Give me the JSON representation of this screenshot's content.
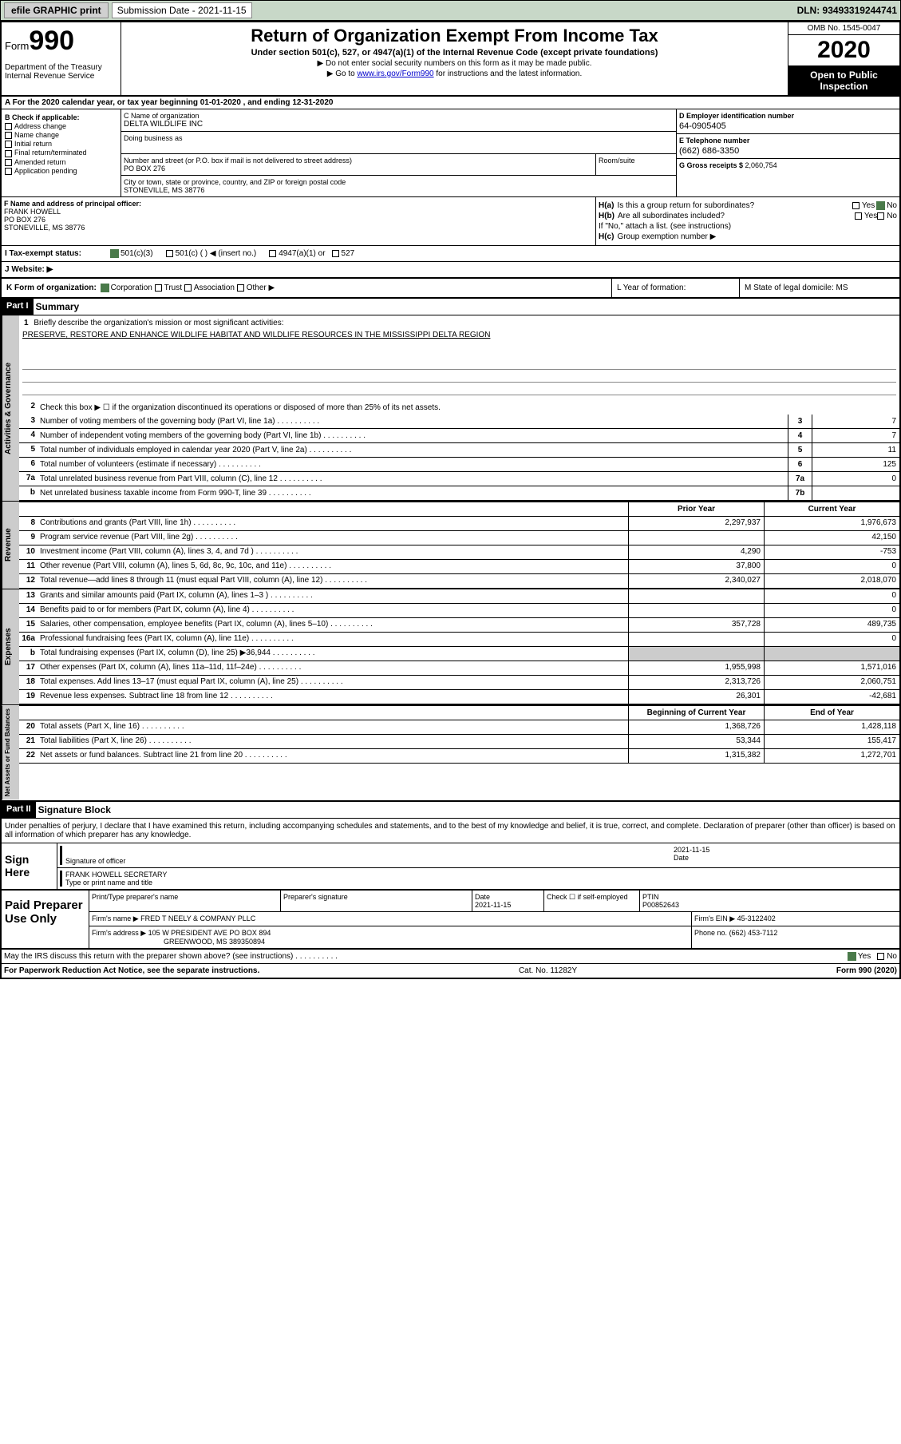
{
  "topbar": {
    "efile": "efile GRAPHIC print",
    "sub_label": "Submission Date - 2021-11-15",
    "dln": "DLN: 93493319244741"
  },
  "header": {
    "form_prefix": "Form",
    "form_num": "990",
    "dept": "Department of the Treasury Internal Revenue Service",
    "title": "Return of Organization Exempt From Income Tax",
    "subtitle": "Under section 501(c), 527, or 4947(a)(1) of the Internal Revenue Code (except private foundations)",
    "note1": "▶ Do not enter social security numbers on this form as it may be made public.",
    "note2_prefix": "▶ Go to ",
    "note2_link": "www.irs.gov/Form990",
    "note2_suffix": " for instructions and the latest information.",
    "omb": "OMB No. 1545-0047",
    "year": "2020",
    "otp": "Open to Public Inspection"
  },
  "line_a": "A For the 2020 calendar year, or tax year beginning 01-01-2020  , and ending 12-31-2020",
  "box_b": {
    "header": "B Check if applicable:",
    "items": [
      "Address change",
      "Name change",
      "Initial return",
      "Final return/terminated",
      "Amended return",
      "Application pending"
    ]
  },
  "box_c": {
    "name_label": "C Name of organization",
    "name": "DELTA WILDLIFE INC",
    "dba_label": "Doing business as",
    "addr_label": "Number and street (or P.O. box if mail is not delivered to street address)",
    "addr": "PO BOX 276",
    "room_label": "Room/suite",
    "city_label": "City or town, state or province, country, and ZIP or foreign postal code",
    "city": "STONEVILLE, MS  38776"
  },
  "box_d": {
    "ein_label": "D Employer identification number",
    "ein": "64-0905405",
    "phone_label": "E Telephone number",
    "phone": "(662) 686-3350",
    "gross_label": "G Gross receipts $ ",
    "gross": "2,060,754"
  },
  "box_f": {
    "label": "F  Name and address of principal officer:",
    "name": "FRANK HOWELL",
    "addr1": "PO BOX 276",
    "addr2": "STONEVILLE, MS  38776"
  },
  "box_h": {
    "ha_label": "H(a)",
    "ha_text": "Is this a group return for subordinates?",
    "hb_label": "H(b)",
    "hb_text": "Are all subordinates included?",
    "hb_note": "If \"No,\" attach a list. (see instructions)",
    "hc_label": "H(c)",
    "hc_text": "Group exemption number ▶",
    "yes": "Yes",
    "no": "No"
  },
  "tax_status": {
    "i_label": "I  Tax-exempt status:",
    "opt1": "501(c)(3)",
    "opt2": "501(c) (  ) ◀ (insert no.)",
    "opt3": "4947(a)(1) or",
    "opt4": "527"
  },
  "website": {
    "j_label": "J  Website: ▶"
  },
  "klm": {
    "k_label": "K Form of organization:",
    "k_corp": "Corporation",
    "k_trust": "Trust",
    "k_assoc": "Association",
    "k_other": "Other ▶",
    "l_label": "L Year of formation:",
    "m_label": "M State of legal domicile: MS"
  },
  "part1": {
    "header": "Part I",
    "title": "Summary",
    "line1_label": "Briefly describe the organization's mission or most significant activities:",
    "line1_text": "PRESERVE, RESTORE AND ENHANCE WILDLIFE HABITAT AND WILDLIFE RESOURCES IN THE MISSISSIPPI DELTA REGION",
    "line2": "Check this box ▶ ☐  if the organization discontinued its operations or disposed of more than 25% of its net assets.",
    "lines": [
      {
        "n": "3",
        "t": "Number of voting members of the governing body (Part VI, line 1a)",
        "box": "3",
        "v": "7"
      },
      {
        "n": "4",
        "t": "Number of independent voting members of the governing body (Part VI, line 1b)",
        "box": "4",
        "v": "7"
      },
      {
        "n": "5",
        "t": "Total number of individuals employed in calendar year 2020 (Part V, line 2a)",
        "box": "5",
        "v": "11"
      },
      {
        "n": "6",
        "t": "Total number of volunteers (estimate if necessary)",
        "box": "6",
        "v": "125"
      },
      {
        "n": "7a",
        "t": "Total unrelated business revenue from Part VIII, column (C), line 12",
        "box": "7a",
        "v": "0"
      },
      {
        "n": "b",
        "t": "Net unrelated business taxable income from Form 990-T, line 39",
        "box": "7b",
        "v": ""
      }
    ]
  },
  "revenue": {
    "prior_header": "Prior Year",
    "curr_header": "Current Year",
    "lines": [
      {
        "n": "8",
        "t": "Contributions and grants (Part VIII, line 1h)",
        "p": "2,297,937",
        "c": "1,976,673"
      },
      {
        "n": "9",
        "t": "Program service revenue (Part VIII, line 2g)",
        "p": "",
        "c": "42,150"
      },
      {
        "n": "10",
        "t": "Investment income (Part VIII, column (A), lines 3, 4, and 7d )",
        "p": "4,290",
        "c": "-753"
      },
      {
        "n": "11",
        "t": "Other revenue (Part VIII, column (A), lines 5, 6d, 8c, 9c, 10c, and 11e)",
        "p": "37,800",
        "c": "0"
      },
      {
        "n": "12",
        "t": "Total revenue—add lines 8 through 11 (must equal Part VIII, column (A), line 12)",
        "p": "2,340,027",
        "c": "2,018,070"
      }
    ]
  },
  "expenses": {
    "lines": [
      {
        "n": "13",
        "t": "Grants and similar amounts paid (Part IX, column (A), lines 1–3 )",
        "p": "",
        "c": "0"
      },
      {
        "n": "14",
        "t": "Benefits paid to or for members (Part IX, column (A), line 4)",
        "p": "",
        "c": "0"
      },
      {
        "n": "15",
        "t": "Salaries, other compensation, employee benefits (Part IX, column (A), lines 5–10)",
        "p": "357,728",
        "c": "489,735"
      },
      {
        "n": "16a",
        "t": "Professional fundraising fees (Part IX, column (A), line 11e)",
        "p": "",
        "c": "0"
      },
      {
        "n": "b",
        "t": "Total fundraising expenses (Part IX, column (D), line 25) ▶36,944",
        "p": "",
        "c": "",
        "shade": true
      },
      {
        "n": "17",
        "t": "Other expenses (Part IX, column (A), lines 11a–11d, 11f–24e)",
        "p": "1,955,998",
        "c": "1,571,016"
      },
      {
        "n": "18",
        "t": "Total expenses. Add lines 13–17 (must equal Part IX, column (A), line 25)",
        "p": "2,313,726",
        "c": "2,060,751"
      },
      {
        "n": "19",
        "t": "Revenue less expenses. Subtract line 18 from line 12",
        "p": "26,301",
        "c": "-42,681"
      }
    ]
  },
  "netassets": {
    "begin_header": "Beginning of Current Year",
    "end_header": "End of Year",
    "lines": [
      {
        "n": "20",
        "t": "Total assets (Part X, line 16)",
        "p": "1,368,726",
        "c": "1,428,118"
      },
      {
        "n": "21",
        "t": "Total liabilities (Part X, line 26)",
        "p": "53,344",
        "c": "155,417"
      },
      {
        "n": "22",
        "t": "Net assets or fund balances. Subtract line 21 from line 20",
        "p": "1,315,382",
        "c": "1,272,701"
      }
    ]
  },
  "part2": {
    "header": "Part II",
    "title": "Signature Block",
    "declaration": "Under penalties of perjury, I declare that I have examined this return, including accompanying schedules and statements, and to the best of my knowledge and belief, it is true, correct, and complete. Declaration of preparer (other than officer) is based on all information of which preparer has any knowledge."
  },
  "sign": {
    "label": "Sign Here",
    "sig_of_officer": "Signature of officer",
    "date": "2021-11-15",
    "date_label": "Date",
    "name": "FRANK HOWELL  SECRETARY",
    "name_label": "Type or print name and title"
  },
  "preparer": {
    "label": "Paid Preparer Use Only",
    "print_name_label": "Print/Type preparer's name",
    "sig_label": "Preparer's signature",
    "date_label": "Date",
    "date": "2021-11-15",
    "check_label": "Check ☐ if self-employed",
    "ptin_label": "PTIN",
    "ptin": "P00852643",
    "firm_name_label": "Firm's name    ▶",
    "firm_name": "FRED T NEELY & COMPANY PLLC",
    "firm_ein_label": "Firm's EIN ▶",
    "firm_ein": "45-3122402",
    "firm_addr_label": "Firm's address ▶",
    "firm_addr1": "105 W PRESIDENT AVE PO BOX 894",
    "firm_addr2": "GREENWOOD, MS  389350894",
    "phone_label": "Phone no.",
    "phone": "(662) 453-7112"
  },
  "irs_discuss": "May the IRS discuss this return with the preparer shown above? (see instructions)",
  "footer": {
    "left": "For Paperwork Reduction Act Notice, see the separate instructions.",
    "mid": "Cat. No. 11282Y",
    "right": "Form 990 (2020)"
  },
  "vtabs": {
    "gov": "Activities & Governance",
    "rev": "Revenue",
    "exp": "Expenses",
    "net": "Net Assets or Fund Balances"
  },
  "colors": {
    "topbar_bg": "#c8d8c8",
    "black": "#000000",
    "check_green": "#4a7a4a",
    "link": "#0000cc",
    "shade": "#cccccc"
  }
}
